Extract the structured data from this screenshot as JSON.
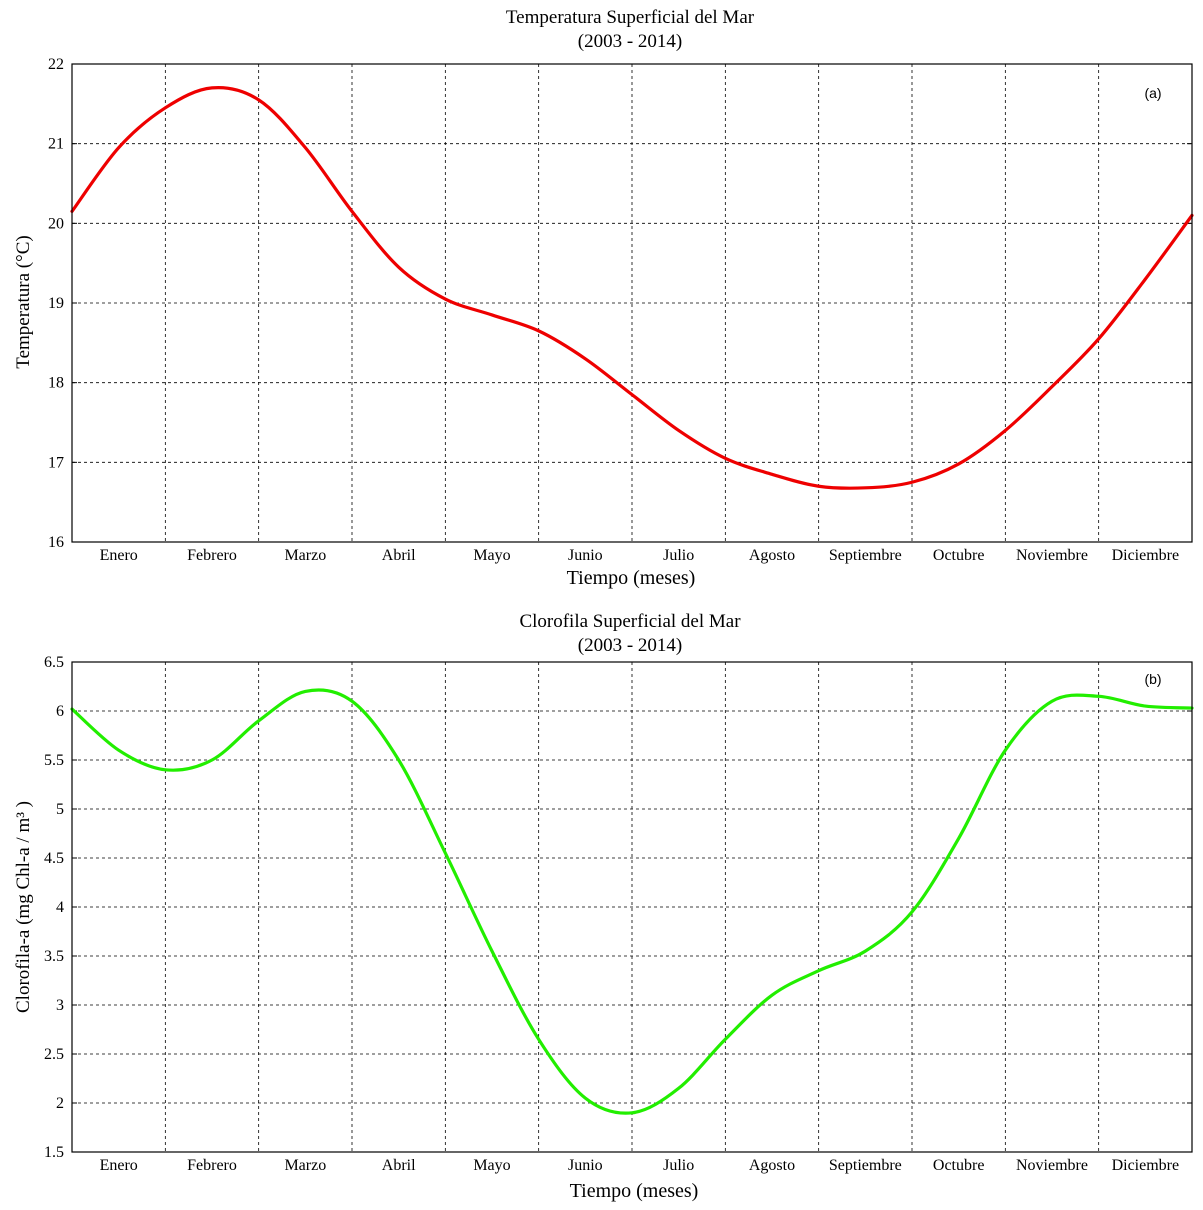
{
  "chart_data": [
    {
      "type": "line",
      "title": "Temperatura Superficial del Mar",
      "subtitle": "(2003 - 2014)",
      "panel_label": "(a)",
      "xlabel": "Tiempo (meses)",
      "ylabel": "Temperatura (°C)",
      "ylim": [
        16,
        22
      ],
      "yticks": [
        "16",
        "17",
        "18",
        "19",
        "20",
        "21",
        "22"
      ],
      "categories": [
        "Enero",
        "Febrero",
        "Marzo",
        "Abril",
        "Mayo",
        "Junio",
        "Julio",
        "Agosto",
        "Septiembre",
        "Octubre",
        "Noviembre",
        "Diciembre"
      ],
      "xlim": [
        0,
        12
      ],
      "grid": true,
      "series": [
        {
          "color": "#ee0000",
          "x": [
            0,
            0.5,
            1,
            1.5,
            2.0,
            2.5,
            3.0,
            3.5,
            4.0,
            4.5,
            5.0,
            5.5,
            6.0,
            6.5,
            7.0,
            7.5,
            8.0,
            8.5,
            9.0,
            9.5,
            10.0,
            10.5,
            11.0,
            11.5,
            12.0
          ],
          "y": [
            20.15,
            20.95,
            21.45,
            21.7,
            21.55,
            20.95,
            20.15,
            19.45,
            19.05,
            18.85,
            18.65,
            18.3,
            17.85,
            17.4,
            17.05,
            16.85,
            16.7,
            16.68,
            16.75,
            16.98,
            17.4,
            17.95,
            18.55,
            19.3,
            20.1
          ]
        }
      ]
    },
    {
      "type": "line",
      "title": "Clorofila Superficial del Mar",
      "subtitle": "(2003 - 2014)",
      "panel_label": "(b)",
      "xlabel": "Tiempo (meses)",
      "ylabel": "Clorofila-a (mg Chl-a / m³ )",
      "ylim": [
        1.5,
        6.5
      ],
      "yticks": [
        "1.5",
        "2",
        "2.5",
        "3",
        "3.5",
        "4",
        "4.5",
        "5",
        "5.5",
        "6",
        "6.5"
      ],
      "categories": [
        "Enero",
        "Febrero",
        "Marzo",
        "Abril",
        "Mayo",
        "Junio",
        "Julio",
        "Agosto",
        "Septiembre",
        "Octubre",
        "Noviembre",
        "Diciembre"
      ],
      "xlim": [
        0,
        12
      ],
      "grid": true,
      "series": [
        {
          "color": "#22ee00",
          "x": [
            0,
            0.5,
            1,
            1.5,
            2.0,
            2.5,
            3.0,
            3.5,
            4.0,
            4.5,
            5.0,
            5.5,
            6.0,
            6.5,
            7.0,
            7.5,
            8.0,
            8.5,
            9.0,
            9.5,
            10.0,
            10.5,
            11.0,
            11.5,
            12.0
          ],
          "y": [
            6.02,
            5.6,
            5.4,
            5.5,
            5.9,
            6.2,
            6.1,
            5.5,
            4.55,
            3.55,
            2.65,
            2.05,
            1.9,
            2.15,
            2.65,
            3.1,
            3.35,
            3.55,
            3.95,
            4.7,
            5.6,
            6.1,
            6.15,
            6.05,
            6.03
          ]
        }
      ]
    }
  ]
}
